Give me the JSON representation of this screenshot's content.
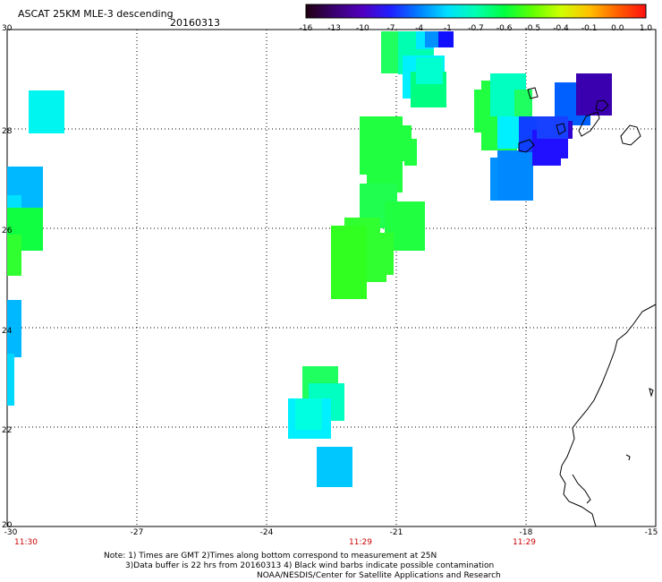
{
  "header": {
    "title": "ASCAT 25KM MLE-3 descending",
    "date": "20160313"
  },
  "colorbar": {
    "labels": [
      "-16",
      "-13",
      "-10",
      "-7",
      "-4",
      "-1",
      "-0.7",
      "-0.6",
      "-0.5",
      "-0.4",
      "-0.1",
      "0.0",
      "1.0"
    ],
    "colors": [
      "#200010",
      "#3a0070",
      "#5000c0",
      "#2020ff",
      "#0080ff",
      "#00e0ff",
      "#00ffb0",
      "#00ff40",
      "#60ff00",
      "#d0ff00",
      "#ffc000",
      "#ff6000",
      "#ff1010"
    ]
  },
  "axes": {
    "lat_labels": [
      "30",
      "28",
      "26",
      "24",
      "22",
      "20"
    ],
    "lon_labels": [
      "-30",
      "-27",
      "-24",
      "-21",
      "-18",
      "-15"
    ],
    "lat_range": [
      20,
      30
    ],
    "lon_range": [
      -30,
      -15
    ],
    "grid": "dotted"
  },
  "times": [
    "11:30",
    "11:29",
    "11:29"
  ],
  "notes": [
    "Note: 1) Times are GMT 2)Times along bottom correspond to measurement at 25N",
    "3)Data buffer is 22 hrs from 20160313 4) Black wind barbs indicate possible contamination",
    "NOAA/NESDIS/Center for Satellite Applications and Research"
  ]
}
